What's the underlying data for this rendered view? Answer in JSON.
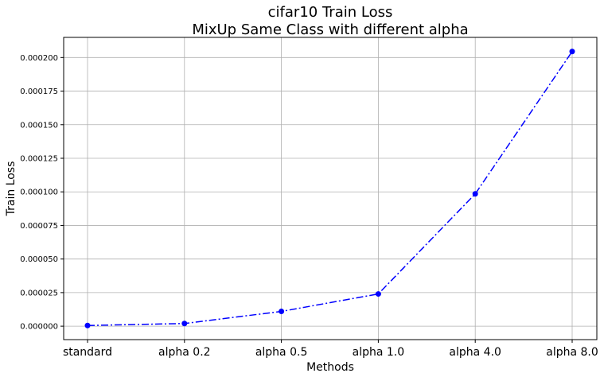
{
  "chart_data": {
    "type": "line",
    "title": "cifar10 Train Loss",
    "subtitle": "MixUp Same Class with different alpha",
    "xlabel": "Methods",
    "ylabel": "Train Loss",
    "categories": [
      "standard",
      "alpha 0.2",
      "alpha 0.5",
      "alpha 1.0",
      "alpha 4.0",
      "alpha 8.0"
    ],
    "series": [
      {
        "values": [
          5e-07,
          2e-06,
          1.1e-05,
          2.4e-05,
          9.85e-05,
          0.0002045
        ],
        "color": "#0000ff",
        "line_style": "dash-dot",
        "marker": "circle"
      }
    ],
    "ylim": [
      -1e-05,
      0.000215
    ],
    "yticks": [
      {
        "value": 0,
        "label": "0.000000"
      },
      {
        "value": 2.5e-05,
        "label": "0.000025"
      },
      {
        "value": 5e-05,
        "label": "0.000050"
      },
      {
        "value": 7.5e-05,
        "label": "0.000075"
      },
      {
        "value": 0.0001,
        "label": "0.000100"
      },
      {
        "value": 0.000125,
        "label": "0.000125"
      },
      {
        "value": 0.00015,
        "label": "0.000150"
      },
      {
        "value": 0.000175,
        "label": "0.000175"
      },
      {
        "value": 0.0002,
        "label": "0.000200"
      }
    ],
    "grid": true
  }
}
